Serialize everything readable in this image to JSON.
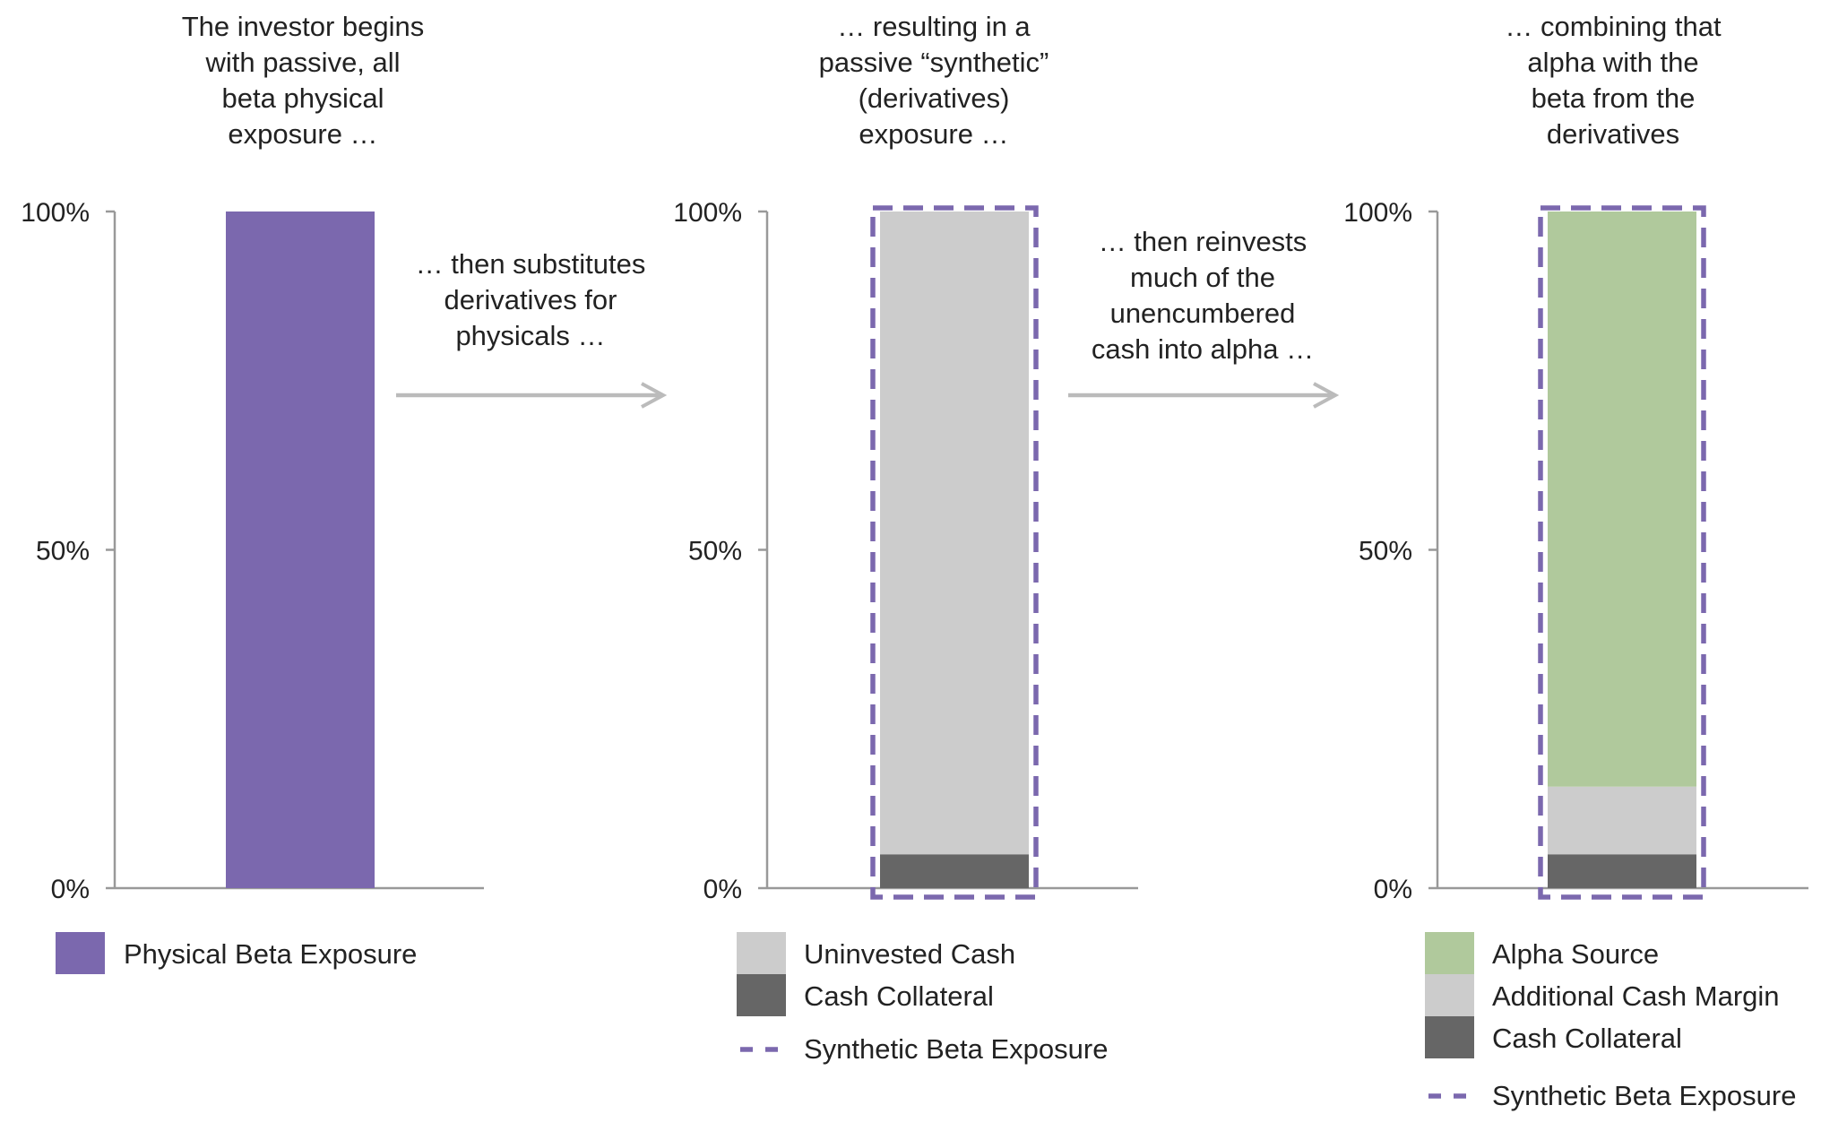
{
  "chart_data": [
    {
      "type": "bar",
      "stacked": true,
      "title": "The investor begins with passive, all beta physical exposure …",
      "title_lines": [
        "The investor begins",
        "with passive, all",
        "beta physical",
        "exposure …"
      ],
      "yticks": [
        "100%",
        "50%",
        "0%"
      ],
      "ylim": [
        0,
        100
      ],
      "series": [
        {
          "name": "Physical Beta Exposure",
          "values": [
            100
          ],
          "color": "#7b68ae"
        }
      ],
      "legend": [
        {
          "label": "Physical Beta Exposure",
          "kind": "swatch",
          "color": "#7b68ae"
        }
      ]
    },
    {
      "type": "bar",
      "stacked": true,
      "title": "… resulting in a passive “synthetic” (derivatives) exposure …",
      "title_lines": [
        "… resulting in a",
        "passive “synthetic”",
        "(derivatives)",
        "exposure …"
      ],
      "yticks": [
        "100%",
        "50%",
        "0%"
      ],
      "ylim": [
        0,
        100
      ],
      "series": [
        {
          "name": "Cash Collateral",
          "values": [
            5
          ],
          "color": "#666666"
        },
        {
          "name": "Uninvested Cash",
          "values": [
            95
          ],
          "color": "#cccccc"
        }
      ],
      "overlay": {
        "name": "Synthetic Beta Exposure",
        "values": [
          100
        ],
        "color": "#7b68ae",
        "style": "dashed"
      },
      "legend": [
        {
          "label": "Uninvested Cash",
          "kind": "swatch",
          "color": "#cccccc"
        },
        {
          "label": "Cash Collateral",
          "kind": "swatch",
          "color": "#666666"
        },
        {
          "label": "Synthetic Beta Exposure",
          "kind": "dash",
          "color": "#7b68ae"
        }
      ]
    },
    {
      "type": "bar",
      "stacked": true,
      "title": "… combining that alpha with the beta from the derivatives",
      "title_lines": [
        "… combining that",
        "alpha with the",
        "beta from the",
        "derivatives"
      ],
      "yticks": [
        "100%",
        "50%",
        "0%"
      ],
      "ylim": [
        0,
        100
      ],
      "series": [
        {
          "name": "Cash Collateral",
          "values": [
            5
          ],
          "color": "#666666"
        },
        {
          "name": "Additional Cash Margin",
          "values": [
            10
          ],
          "color": "#cccccc"
        },
        {
          "name": "Alpha Source",
          "values": [
            85
          ],
          "color": "#b0c99c"
        }
      ],
      "overlay": {
        "name": "Synthetic Beta Exposure",
        "values": [
          100
        ],
        "color": "#7b68ae",
        "style": "dashed"
      },
      "legend": [
        {
          "label": "Alpha Source",
          "kind": "swatch",
          "color": "#b0c99c"
        },
        {
          "label": "Additional Cash Margin",
          "kind": "swatch",
          "color": "#cccccc"
        },
        {
          "label": "Cash Collateral",
          "kind": "swatch",
          "color": "#666666"
        },
        {
          "label": "Synthetic Beta Exposure",
          "kind": "dash",
          "color": "#7b68ae"
        }
      ]
    }
  ],
  "transitions": [
    {
      "lines": [
        "… then substitutes",
        "derivatives for",
        "physicals …"
      ]
    },
    {
      "lines": [
        "… then reinvests",
        "much of the",
        "unencumbered",
        "cash into alpha …"
      ]
    }
  ],
  "colors": {
    "axis": "#999999",
    "arrow": "#bbbbbb",
    "text": "#222222",
    "overlay": "#7b68ae"
  }
}
